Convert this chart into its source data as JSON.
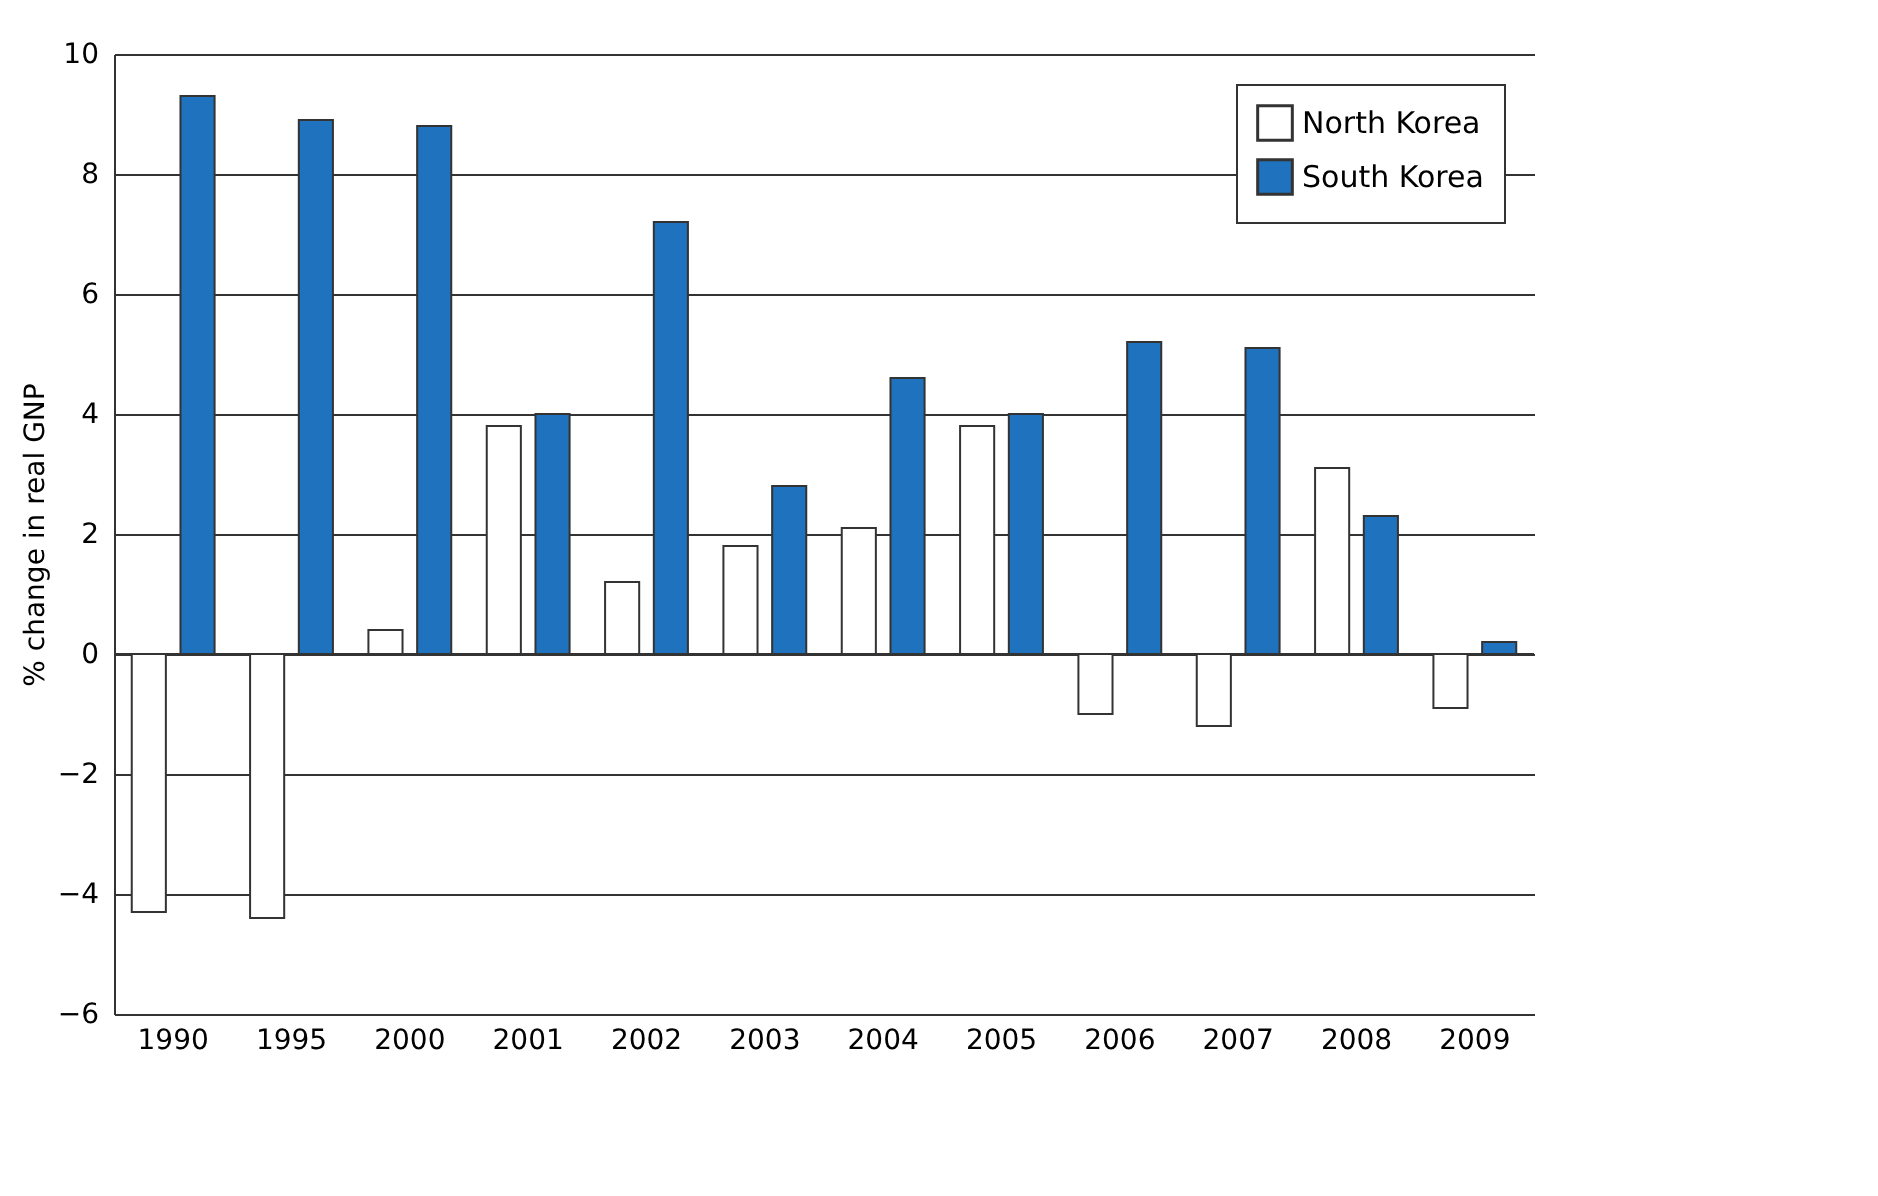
{
  "chart_data": {
    "type": "bar",
    "ylabel": "% change in real GNP",
    "categories": [
      "1990",
      "1995",
      "2000",
      "2001",
      "2002",
      "2003",
      "2004",
      "2005",
      "2006",
      "2007",
      "2008",
      "2009"
    ],
    "series": [
      {
        "name": "North Korea",
        "color": "#ffffff",
        "values": [
          -4.3,
          -4.4,
          0.4,
          3.8,
          1.2,
          1.8,
          2.1,
          3.8,
          -1.0,
          -1.2,
          3.1,
          -0.9
        ]
      },
      {
        "name": "South Korea",
        "color": "#1f72bd",
        "values": [
          9.3,
          8.9,
          8.8,
          4.0,
          7.2,
          2.8,
          4.6,
          4.0,
          5.2,
          5.1,
          2.3,
          0.2
        ]
      }
    ],
    "ylim": [
      -6,
      10
    ],
    "yticks": [
      -6,
      -4,
      -2,
      0,
      2,
      4,
      6,
      8,
      10
    ],
    "grid": "y",
    "legend": "top right"
  }
}
